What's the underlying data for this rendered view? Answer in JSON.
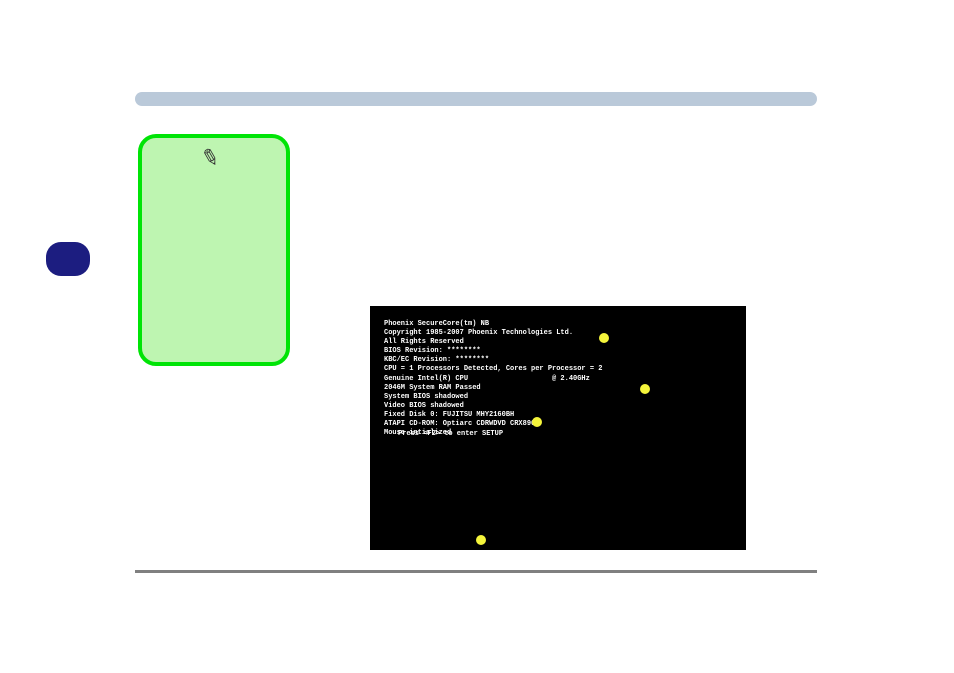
{
  "colors": {
    "top_bar": "#bac9d9",
    "left_tab": "#1c1d80",
    "note_fill": "#bef5b1",
    "note_border": "#00e406",
    "bios_bg": "#000000",
    "bios_text": "#ffffff",
    "yellow": "#f5f53b",
    "bottom_line": "#808080"
  },
  "bios": {
    "lines": [
      "Phoenix SecureCore(tm) NB",
      "Copyright 1985-2007 Phoenix Technologies Ltd.",
      "All Rights Reserved",
      "BIOS Revision: ********",
      "KBC/EC Revision: ********",
      "CPU = 1 Processors Detected, Cores per Processor = 2",
      "Genuine Intel(R) CPU                    @ 2.40GHz",
      "2046M System RAM Passed",
      "System BIOS shadowed",
      "Video BIOS shadowed",
      "Fixed Disk 0: FUJITSU MHY2160BH",
      "ATAPI CD-ROM: Optiarc CDRWDVD CRX890S",
      "Mouse intialized"
    ],
    "footer": "Press <F2> to enter SETUP"
  }
}
